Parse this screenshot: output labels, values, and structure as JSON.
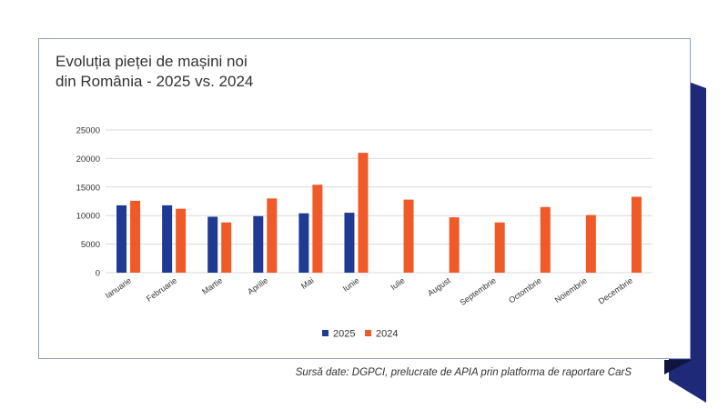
{
  "title_line1": "Evoluția pieței de mașini noi",
  "title_line2": "din România - 2025 vs. 2024",
  "source": "Sursă date: DGPCI, prelucrate de APIA prin platforma de raportare CarS",
  "colors": {
    "series2025": "#1f3a93",
    "series2024": "#f05a28",
    "grid": "#d9d9d9",
    "accent": "#1e2a78",
    "accent_dark": "#10153d"
  },
  "chart_data": {
    "type": "bar",
    "title": "Evoluția pieței de mașini noi din România - 2025 vs. 2024",
    "categories": [
      "Ianuarie",
      "Februarie",
      "Martie",
      "Aprilie",
      "Mai",
      "Iunie",
      "Iulie",
      "August",
      "Septembrie",
      "Octombrie",
      "Noiembrie",
      "Decembrie"
    ],
    "series": [
      {
        "name": "2025",
        "color": "#1f3a93",
        "values": [
          11800,
          11800,
          9800,
          9900,
          10400,
          10500,
          null,
          null,
          null,
          null,
          null,
          null
        ]
      },
      {
        "name": "2024",
        "color": "#f05a28",
        "values": [
          12600,
          11200,
          8800,
          13000,
          15400,
          21000,
          12800,
          9700,
          8800,
          11500,
          10100,
          13300
        ]
      }
    ],
    "yticks": [
      0,
      5000,
      10000,
      15000,
      20000,
      25000
    ],
    "ylim": [
      0,
      25000
    ],
    "grid": true,
    "legend": "bottom"
  }
}
